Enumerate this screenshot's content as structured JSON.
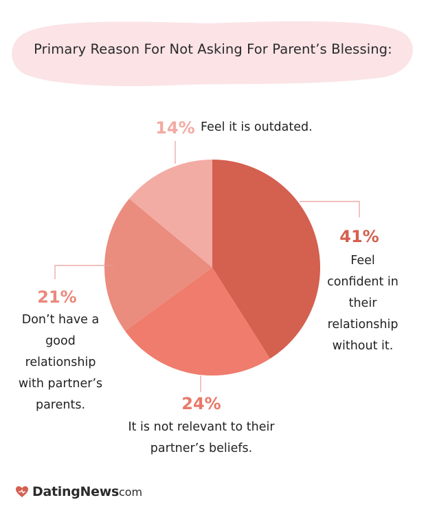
{
  "title": "Primary Reason For Not Asking For Parent’s Blessing:",
  "colors": {
    "banner": "#fbe3e6",
    "slice_41": "#d46050",
    "slice_24": "#ef7c6c",
    "slice_21": "#ea8c7e",
    "slice_14": "#f3aca4",
    "pct_41": "#d46050",
    "pct_24": "#e8786a",
    "pct_21": "#e9897c",
    "pct_14": "#f2aaa2",
    "leader": "#e89c93"
  },
  "chart_data": {
    "type": "pie",
    "slices": [
      {
        "label": "Feel confident in their relationship without it.",
        "value": 41
      },
      {
        "label": "It is not relevant to their partner’s beliefs.",
        "value": 24
      },
      {
        "label": "Don’t have a good relationship with partner’s parents.",
        "value": 21
      },
      {
        "label": "Feel it is outdated.",
        "value": 14
      }
    ],
    "value_labels": [
      "41%",
      "24%",
      "21%",
      "14%"
    ],
    "lines": {
      "s41": [
        "Feel",
        "confident in",
        "their",
        "relationship",
        "without it."
      ],
      "s24": [
        "It is not relevant to their",
        "partner’s beliefs."
      ],
      "s21": [
        "Don’t have a",
        "good",
        "relationship",
        "with partner’s",
        "parents."
      ],
      "s14": [
        "Feel it is outdated."
      ]
    }
  },
  "logo": {
    "name": "DatingNews",
    "tld": "com",
    "icon": "heart-icon"
  }
}
